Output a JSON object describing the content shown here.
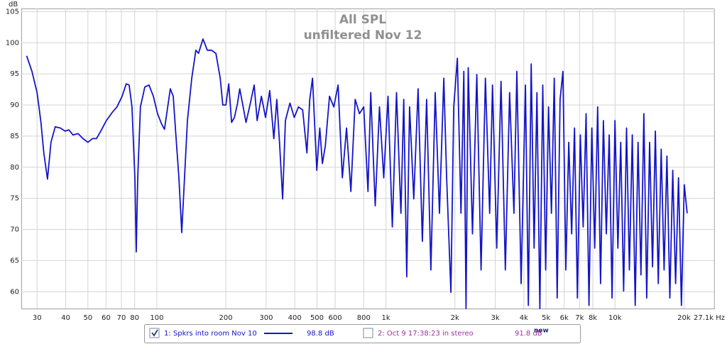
{
  "chart_data": {
    "type": "line",
    "title": "All SPL",
    "subtitle": "unfiltered Nov 12",
    "y_label": "dB",
    "log_x": true,
    "grid": true,
    "xlim": [
      25.6,
      27100
    ],
    "ylim": [
      57.3,
      105.5
    ],
    "yticks": [
      60,
      65,
      70,
      75,
      80,
      85,
      90,
      95,
      100,
      105
    ],
    "xticks": [
      30,
      40,
      50,
      60,
      70,
      80,
      100,
      200,
      300,
      400,
      500,
      600,
      800,
      {
        "value": 1000,
        "label": "1k"
      },
      {
        "value": 2000,
        "label": "2k"
      },
      {
        "value": 3000,
        "label": "3k"
      },
      {
        "value": 4000,
        "label": "4k"
      },
      {
        "value": 5000,
        "label": "5k"
      },
      {
        "value": 6000,
        "label": "6k"
      },
      {
        "value": 7000,
        "label": "7k"
      },
      {
        "value": 8000,
        "label": "8k"
      },
      {
        "value": 10000,
        "label": "10k"
      },
      {
        "value": 20000,
        "label": "20k"
      },
      {
        "value": 27100,
        "label": "27.1k Hz"
      }
    ],
    "x": [
      27,
      28.5,
      30,
      31.2,
      32.1,
      33.3,
      34.5,
      36,
      37.9,
      39.8,
      41.3,
      43,
      45.3,
      47.6,
      50,
      52.3,
      54.5,
      56.9,
      60.2,
      63.8,
      67,
      70.5,
      73.5,
      75.7,
      77.9,
      80.2,
      81.3,
      82.5,
      84.8,
      88.6,
      92.4,
      96.5,
      100.7,
      105,
      108,
      111,
      114.5,
      117.9,
      121,
      124.8,
      128.4,
      132,
      136,
      142,
      148,
      152,
      159,
      166,
      173,
      181,
      189,
      194,
      200,
      206,
      212,
      218,
      225,
      230,
      238,
      245,
      255,
      266,
      274,
      286,
      298,
      311,
      324,
      334,
      343,
      354,
      364,
      381,
      398,
      415,
      433,
      452,
      465,
      478,
      499,
      514,
      528,
      544,
      567,
      592,
      618,
      645,
      673,
      703,
      734,
      766,
      800,
      835,
      858,
      898,
      937,
      978,
      1021,
      1066,
      1112,
      1162,
      1196,
      1232,
      1268,
      1323,
      1381,
      1442,
      1505,
      1571,
      1641,
      1713,
      1788,
      1840,
      1921,
      1977,
      2050,
      2126,
      2188,
      2236,
      2286,
      2387,
      2492,
      2602,
      2717,
      2837,
      2918,
      3046,
      3180,
      3320,
      3467,
      3620,
      3727,
      3891,
      4063,
      4183,
      4305,
      4432,
      4563,
      4697,
      4836,
      4979,
      5125,
      5276,
      5431,
      5591,
      5756,
      5925,
      6100,
      6280,
      6465,
      6655,
      6852,
      7054,
      7261,
      7475,
      7695,
      7922,
      8155,
      8395,
      8643,
      8897,
      9159,
      9429,
      9707,
      9993,
      10287,
      10590,
      10902,
      11223,
      11554,
      11894,
      12244,
      12605,
      12976,
      13358,
      13752,
      14157,
      14574,
      15003,
      15445,
      15900,
      16369,
      16851,
      17347,
      17858,
      18384,
      18925,
      19483,
      20057,
      20648
    ],
    "series": [
      {
        "name": "1: Spkrs into room Nov 10",
        "color": "#1414c8",
        "level": "98.8 dB",
        "checked": true,
        "values": [
          97.9,
          95.4,
          92.0,
          87.2,
          82.3,
          78.1,
          84.0,
          86.5,
          86.3,
          85.8,
          86.0,
          85.2,
          85.4,
          84.6,
          84.0,
          84.6,
          84.6,
          85.8,
          87.5,
          88.8,
          89.7,
          91.4,
          93.4,
          93.2,
          89.7,
          78.3,
          66.4,
          78.3,
          89.7,
          92.9,
          93.2,
          91.4,
          88.6,
          86.9,
          86.1,
          89.2,
          92.6,
          91.4,
          85.2,
          78.3,
          69.5,
          78.3,
          87.5,
          94.3,
          98.8,
          98.3,
          100.6,
          98.8,
          98.8,
          98.3,
          94.3,
          90.0,
          90.0,
          93.4,
          87.2,
          88.0,
          90.3,
          92.6,
          89.7,
          87.2,
          90.0,
          93.2,
          87.5,
          91.4,
          88.0,
          92.3,
          84.6,
          90.9,
          84.0,
          74.9,
          87.5,
          90.3,
          88.0,
          89.7,
          89.2,
          82.3,
          90.9,
          94.3,
          79.5,
          86.3,
          80.6,
          83.5,
          91.4,
          89.7,
          93.2,
          78.3,
          86.3,
          76.1,
          90.9,
          88.6,
          89.7,
          76.1,
          92.0,
          73.8,
          89.7,
          78.3,
          91.4,
          70.4,
          92.0,
          72.6,
          90.9,
          62.4,
          89.7,
          74.9,
          92.6,
          68.1,
          90.9,
          63.5,
          92.0,
          72.6,
          94.3,
          78.3,
          59.9,
          89.7,
          97.5,
          72.6,
          95.4,
          57.3,
          96.0,
          69.3,
          94.9,
          63.5,
          94.3,
          72.6,
          93.2,
          67.0,
          93.8,
          63.5,
          92.0,
          72.6,
          95.4,
          61.3,
          93.2,
          57.8,
          96.6,
          67.0,
          92.0,
          57.3,
          93.2,
          63.5,
          89.7,
          72.6,
          94.3,
          59.0,
          90.9,
          95.4,
          63.5,
          84.0,
          69.3,
          86.3,
          59.0,
          85.2,
          70.4,
          88.6,
          57.8,
          86.3,
          67.0,
          89.7,
          61.3,
          87.5,
          69.3,
          85.2,
          59.0,
          87.5,
          67.0,
          84.0,
          60.1,
          86.3,
          63.5,
          85.2,
          57.8,
          84.0,
          62.7,
          88.6,
          59.0,
          84.0,
          64.0,
          85.8,
          61.3,
          82.9,
          63.5,
          81.8,
          59.0,
          79.5,
          61.3,
          78.3,
          57.8,
          77.2,
          72.6
        ]
      }
    ],
    "other_measurements": [
      {
        "name": "2: Oct 9 17:38:23 in stereo",
        "color": "#a0309a",
        "level": "91.8 dB",
        "checked": false
      }
    ],
    "new_label": "new"
  }
}
